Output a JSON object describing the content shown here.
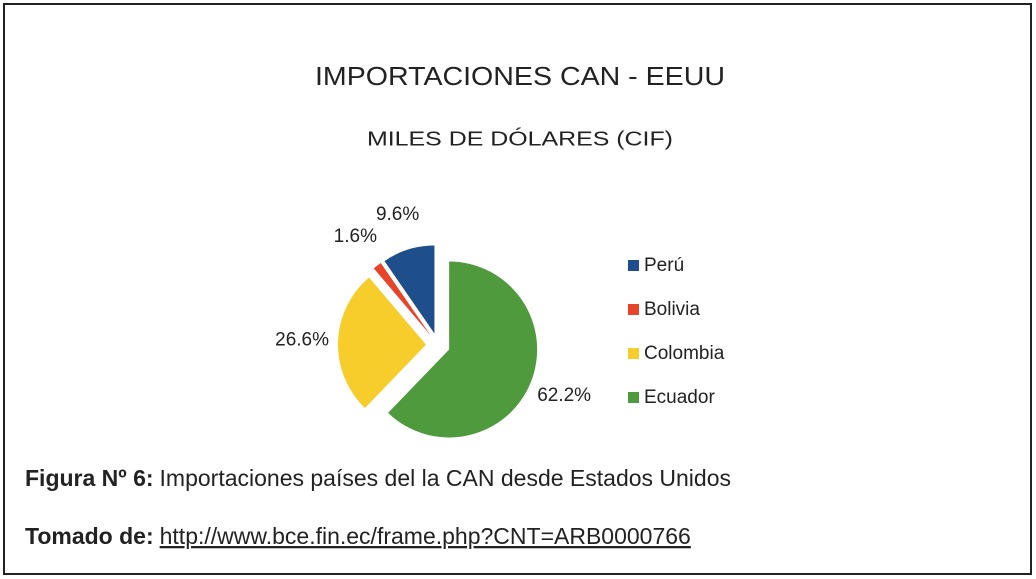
{
  "chart_data": {
    "type": "pie",
    "title": "IMPORTACIONES CAN - EEUU",
    "subtitle": "MILES DE DÓLARES (CIF)",
    "categories": [
      "Perú",
      "Bolivia",
      "Colombia",
      "Ecuador"
    ],
    "values": [
      9.6,
      1.6,
      26.6,
      62.2
    ],
    "value_labels": [
      "9.6%",
      "1.6%",
      "26.6%",
      "62.2%"
    ],
    "colors": [
      "#1f4e8c",
      "#e8442a",
      "#f7cd2b",
      "#4f9a3c"
    ],
    "legend": "right"
  },
  "caption": {
    "label": "Figura Nº 6:",
    "text": "Importaciones países del la CAN desde Estados Unidos"
  },
  "source": {
    "label": "Tomado de:",
    "url": "http://www.bce.fin.ec/frame.php?CNT=ARB0000766"
  }
}
